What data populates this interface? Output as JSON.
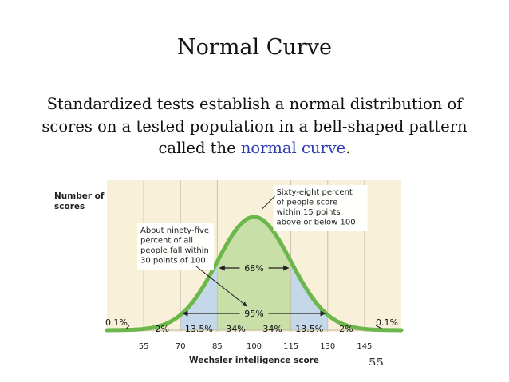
{
  "slide": {
    "title": "Normal Curve",
    "subtitle_pre": "Standardized tests establish a normal distribution of scores on a tested population in a bell-shaped pattern called the ",
    "subtitle_highlight": "normal curve",
    "subtitle_post": ".",
    "page_number": "55"
  },
  "colors": {
    "panel_bg": "#f8f0d8",
    "grid_line": "#c8c2b2",
    "curve": "#6cb74b",
    "shade_68": "#c8dfa8",
    "shade_95": "#c4d8ea",
    "highlight_text": "#2f3bb5"
  },
  "chart_data": {
    "type": "area",
    "distribution": "normal",
    "mean": 100,
    "sd": 15,
    "xlabel": "Wechsler intelligence score",
    "ylabel_lines": [
      "Number of",
      "scores"
    ],
    "xlim": [
      40,
      160
    ],
    "ticks": [
      {
        "value": 55,
        "label": "55"
      },
      {
        "value": 70,
        "label": "70"
      },
      {
        "value": 85,
        "label": "85"
      },
      {
        "value": 100,
        "label": "100"
      },
      {
        "value": 115,
        "label": "115"
      },
      {
        "value": 130,
        "label": "130"
      },
      {
        "value": 145,
        "label": "145"
      }
    ],
    "shaded_regions": [
      {
        "from": 70,
        "to": 130,
        "label": "95%"
      },
      {
        "from": 85,
        "to": 115,
        "label": "68%"
      }
    ],
    "segment_labels": [
      {
        "x": 45,
        "label": "0.1%"
      },
      {
        "x": 62.5,
        "label": "2%"
      },
      {
        "x": 77.5,
        "label": "13.5%"
      },
      {
        "x": 92.5,
        "label": "34%"
      },
      {
        "x": 107.5,
        "label": "34%"
      },
      {
        "x": 122.5,
        "label": "13.5%"
      },
      {
        "x": 137.5,
        "label": "2%"
      },
      {
        "x": 155,
        "label": "0.1%"
      }
    ],
    "annotations": [
      {
        "name": "sixty-eight",
        "lines": [
          "Sixty-eight percent",
          "of people score",
          "within 15 points",
          "above or below 100"
        ]
      },
      {
        "name": "ninety-five",
        "lines": [
          "About ninety-five",
          "percent of all",
          "people fall within",
          "30 points of 100"
        ]
      }
    ]
  }
}
